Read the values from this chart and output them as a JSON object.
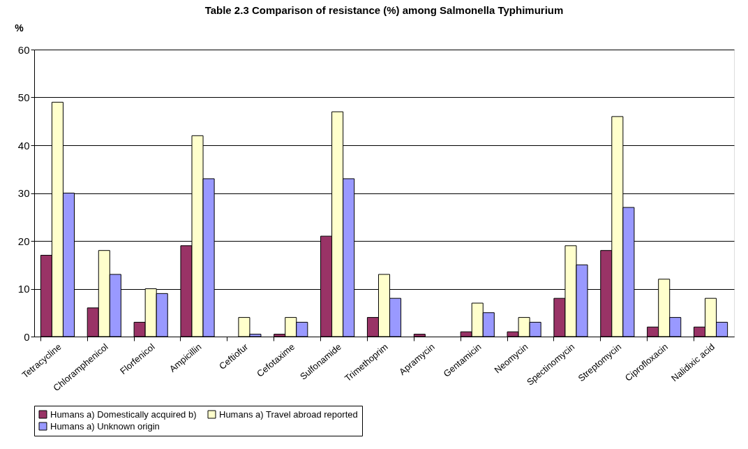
{
  "chart_data": {
    "type": "bar",
    "title": "Table 2.3 Comparison of resistance (%) among Salmonella Typhimurium",
    "ylabel": "%",
    "categories": [
      "Tetracycline",
      "Chloramphenicol",
      "Florfenicol",
      "Ampicillin",
      "Ceftiofur",
      "Cefotaxime",
      "Sulfonamide",
      "Trimethoprim",
      "Apramycin",
      "Gentamicin",
      "Neomycin",
      "Spectinomycin",
      "Streptomycin",
      "Ciprofloxacin",
      "Nalidixic acid"
    ],
    "series": [
      {
        "name": "Humans a) Domestically acquired b)",
        "color": "#993366",
        "values": [
          17,
          6,
          3,
          19,
          null,
          0.5,
          21,
          4,
          0.5,
          1,
          1,
          8,
          18,
          2,
          2
        ]
      },
      {
        "name": "Humans a) Travel abroad reported",
        "color": "#ffffcc",
        "values": [
          49,
          18,
          10,
          42,
          4,
          4,
          47,
          13,
          null,
          7,
          4,
          19,
          46,
          12,
          8
        ]
      },
      {
        "name": "Humans a) Unknown origin",
        "color": "#9999ff",
        "values": [
          30,
          13,
          9,
          33,
          0.5,
          3,
          33,
          8,
          null,
          5,
          3,
          15,
          27,
          4,
          3
        ]
      }
    ],
    "ylim": [
      0,
      60
    ],
    "yticks": [
      0,
      10,
      20,
      30,
      40,
      50,
      60
    ],
    "grid": "y",
    "legend": "bottom"
  }
}
